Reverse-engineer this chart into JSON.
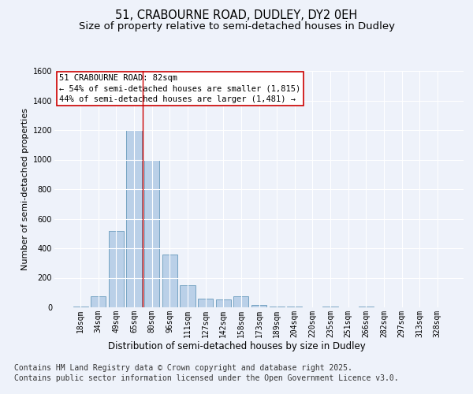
{
  "title_line1": "51, CRABOURNE ROAD, DUDLEY, DY2 0EH",
  "title_line2": "Size of property relative to semi-detached houses in Dudley",
  "xlabel": "Distribution of semi-detached houses by size in Dudley",
  "ylabel": "Number of semi-detached properties",
  "categories": [
    "18sqm",
    "34sqm",
    "49sqm",
    "65sqm",
    "80sqm",
    "96sqm",
    "111sqm",
    "127sqm",
    "142sqm",
    "158sqm",
    "173sqm",
    "189sqm",
    "204sqm",
    "220sqm",
    "235sqm",
    "251sqm",
    "266sqm",
    "282sqm",
    "297sqm",
    "313sqm",
    "328sqm"
  ],
  "values": [
    5,
    75,
    520,
    1200,
    1000,
    360,
    150,
    60,
    55,
    75,
    15,
    5,
    5,
    0,
    5,
    0,
    3,
    0,
    0,
    0,
    0
  ],
  "bar_color": "#bad0e8",
  "bar_edge_color": "#6699bb",
  "vline_color": "#cc0000",
  "vline_x_index": 3.5,
  "annotation_title": "51 CRABOURNE ROAD: 82sqm",
  "annotation_line1": "← 54% of semi-detached houses are smaller (1,815)",
  "annotation_line2": "44% of semi-detached houses are larger (1,481) →",
  "annotation_box_facecolor": "#ffffff",
  "annotation_box_edgecolor": "#cc0000",
  "ylim": [
    0,
    1600
  ],
  "yticks": [
    0,
    200,
    400,
    600,
    800,
    1000,
    1200,
    1400,
    1600
  ],
  "footer_line1": "Contains HM Land Registry data © Crown copyright and database right 2025.",
  "footer_line2": "Contains public sector information licensed under the Open Government Licence v3.0.",
  "bg_color": "#eef2fa",
  "plot_bg_color": "#eef2fa",
  "grid_color": "#ffffff",
  "title_fontsize": 10.5,
  "subtitle_fontsize": 9.5,
  "footer_fontsize": 7,
  "ylabel_fontsize": 8,
  "xlabel_fontsize": 8.5,
  "tick_fontsize": 7,
  "annot_fontsize": 7.5
}
